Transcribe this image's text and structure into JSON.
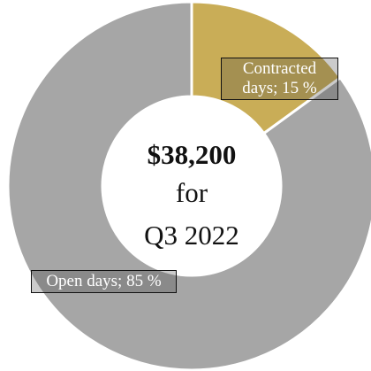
{
  "chart_data": {
    "type": "donut",
    "values": [
      15,
      85
    ],
    "value_labels": [
      "Contracted days; 15 %",
      "Open days; 85 %"
    ],
    "colors": [
      "#c9ad57",
      "#a6a6a6"
    ],
    "center_text": [
      "$38,200",
      "for",
      "Q3 2022"
    ]
  }
}
